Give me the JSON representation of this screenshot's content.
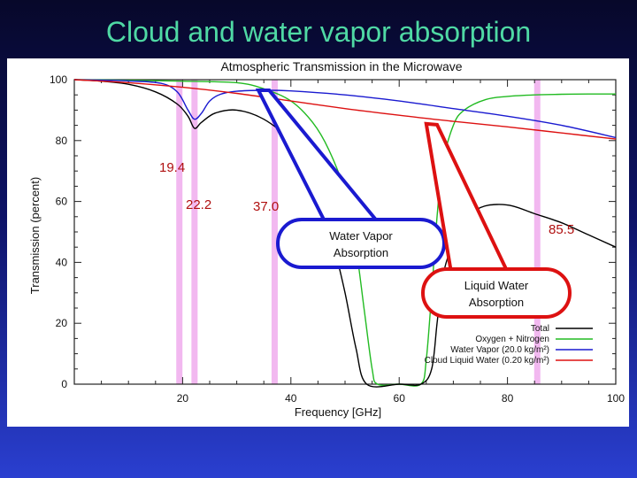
{
  "slide": {
    "title": "Cloud and water vapor absorption"
  },
  "chart_data": {
    "type": "line",
    "title": "Atmospheric Transmission in the Microwave",
    "xlabel": "Frequency [GHz]",
    "ylabel": "Transmission (percent)",
    "xlim": [
      0,
      100
    ],
    "ylim": [
      0,
      100
    ],
    "x_ticks": [
      "20",
      "40",
      "60",
      "80",
      "100"
    ],
    "y_ticks": [
      "0",
      "20",
      "40",
      "60",
      "80",
      "100"
    ],
    "grid": false,
    "legend_position": "bottom-right",
    "bands": [
      {
        "label": "19.4",
        "x": 19.4
      },
      {
        "label": "22.2",
        "x": 22.2
      },
      {
        "label": "37.0",
        "x": 37.0
      },
      {
        "label": "85.5",
        "x": 85.5
      }
    ],
    "series": [
      {
        "name": "Total",
        "color": "#000000",
        "points": [
          [
            0,
            100
          ],
          [
            5,
            99.5
          ],
          [
            10,
            98.5
          ],
          [
            15,
            96
          ],
          [
            19,
            92
          ],
          [
            21,
            88
          ],
          [
            22.2,
            84
          ],
          [
            23.5,
            86
          ],
          [
            26,
            89
          ],
          [
            30,
            90
          ],
          [
            35,
            87
          ],
          [
            40,
            80
          ],
          [
            43,
            72
          ],
          [
            46,
            58
          ],
          [
            48,
            45
          ],
          [
            50,
            30
          ],
          [
            52,
            12
          ],
          [
            54,
            0
          ],
          [
            60,
            0
          ],
          [
            64,
            0
          ],
          [
            66,
            5
          ],
          [
            67,
            20
          ],
          [
            68,
            35
          ],
          [
            70,
            47
          ],
          [
            72,
            54
          ],
          [
            75,
            58
          ],
          [
            78,
            59
          ],
          [
            81,
            58.5
          ],
          [
            85,
            56
          ],
          [
            90,
            53
          ],
          [
            95,
            49
          ],
          [
            100,
            45
          ]
        ]
      },
      {
        "name": "Oxygen + Nitrogen",
        "color": "#22bb22",
        "points": [
          [
            0,
            100
          ],
          [
            10,
            99.8
          ],
          [
            20,
            99.5
          ],
          [
            30,
            99
          ],
          [
            35,
            97
          ],
          [
            40,
            93
          ],
          [
            44,
            86
          ],
          [
            47,
            77
          ],
          [
            50,
            63
          ],
          [
            52,
            45
          ],
          [
            53.5,
            25
          ],
          [
            55,
            5
          ],
          [
            56,
            0
          ],
          [
            60,
            0
          ],
          [
            64,
            0
          ],
          [
            65,
            8
          ],
          [
            66,
            30
          ],
          [
            67,
            55
          ],
          [
            68,
            72
          ],
          [
            70,
            85
          ],
          [
            72,
            90
          ],
          [
            76,
            93.5
          ],
          [
            80,
            94.5
          ],
          [
            85,
            95
          ],
          [
            90,
            95.2
          ],
          [
            95,
            95.3
          ],
          [
            100,
            95.3
          ]
        ]
      },
      {
        "name": "Water Vapor (20.0 kg/m²)",
        "color": "#1a1ad0",
        "points": [
          [
            0,
            100
          ],
          [
            10,
            99.6
          ],
          [
            16,
            98.8
          ],
          [
            19,
            96
          ],
          [
            21,
            90
          ],
          [
            22.2,
            87
          ],
          [
            23.5,
            89
          ],
          [
            25,
            93
          ],
          [
            27,
            95.2
          ],
          [
            30,
            96.2
          ],
          [
            35,
            96.5
          ],
          [
            40,
            96.3
          ],
          [
            50,
            95
          ],
          [
            60,
            93
          ],
          [
            70,
            90.5
          ],
          [
            80,
            88
          ],
          [
            90,
            85
          ],
          [
            100,
            81
          ]
        ]
      },
      {
        "name": "Cloud Liquid Water (0.20 kg/m²)",
        "color": "#dd1111",
        "points": [
          [
            0,
            100
          ],
          [
            10,
            99
          ],
          [
            20,
            97.5
          ],
          [
            30,
            95.5
          ],
          [
            40,
            93
          ],
          [
            50,
            90.5
          ],
          [
            60,
            88.3
          ],
          [
            70,
            86.3
          ],
          [
            80,
            84.5
          ],
          [
            90,
            82.5
          ],
          [
            100,
            80.5
          ]
        ]
      }
    ],
    "annotations": [
      {
        "text_lines": [
          "Water Vapor",
          "Absorption"
        ],
        "color": "#1a1ad0",
        "points_to": [
          [
            34,
            96.5
          ],
          [
            36,
            96.5
          ]
        ]
      },
      {
        "text_lines": [
          "Liquid Water",
          "Absorption"
        ],
        "color": "#dd1111",
        "points_to": [
          [
            65,
            85.5
          ],
          [
            67,
            85.2
          ]
        ]
      }
    ]
  }
}
